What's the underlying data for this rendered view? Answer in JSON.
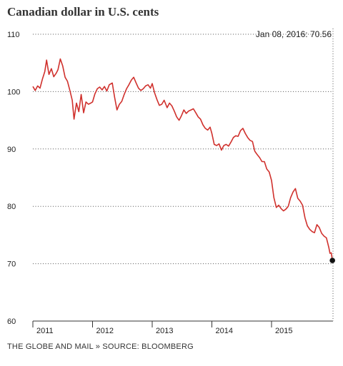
{
  "title": "Canadian dollar in U.S. cents",
  "source": "THE GLOBE AND MAIL » SOURCE: BLOOMBERG",
  "colors": {
    "line": "#d0312d",
    "grid": "#555555",
    "axis": "#333333",
    "point": "#111111"
  },
  "chart_data": {
    "type": "line",
    "title": "Canadian dollar in U.S. cents",
    "xlabel": "",
    "ylabel": "",
    "ylim": [
      60,
      110
    ],
    "y_ticks": [
      60,
      70,
      80,
      90,
      100,
      110
    ],
    "xlim": [
      2011.0,
      2016.03
    ],
    "x_ticks": [
      {
        "label": "2011",
        "x": 2011.0
      },
      {
        "label": "2012",
        "x": 2012.0
      },
      {
        "label": "2013",
        "x": 2013.0
      },
      {
        "label": "2014",
        "x": 2014.0
      },
      {
        "label": "2015",
        "x": 2015.0
      }
    ],
    "grid": "horizontal dotted",
    "annotation": {
      "text": "Jan 08, 2016: 70.56",
      "x": 2016.02,
      "y": 70.56
    },
    "series": [
      {
        "values": [
          [
            2011.0,
            100.9
          ],
          [
            2011.04,
            100.2
          ],
          [
            2011.08,
            101.0
          ],
          [
            2011.12,
            100.6
          ],
          [
            2011.16,
            102.2
          ],
          [
            2011.2,
            103.5
          ],
          [
            2011.23,
            105.5
          ],
          [
            2011.27,
            103.0
          ],
          [
            2011.31,
            104.0
          ],
          [
            2011.35,
            102.6
          ],
          [
            2011.39,
            103.2
          ],
          [
            2011.42,
            103.8
          ],
          [
            2011.46,
            105.7
          ],
          [
            2011.5,
            104.5
          ],
          [
            2011.54,
            102.5
          ],
          [
            2011.58,
            101.8
          ],
          [
            2011.62,
            100.2
          ],
          [
            2011.66,
            98.5
          ],
          [
            2011.69,
            95.2
          ],
          [
            2011.73,
            98.0
          ],
          [
            2011.77,
            96.5
          ],
          [
            2011.81,
            99.5
          ],
          [
            2011.85,
            96.3
          ],
          [
            2011.89,
            98.2
          ],
          [
            2011.93,
            97.8
          ],
          [
            2011.97,
            98.0
          ],
          [
            2012.0,
            98.2
          ],
          [
            2012.04,
            99.6
          ],
          [
            2012.08,
            100.5
          ],
          [
            2012.12,
            100.8
          ],
          [
            2012.16,
            100.3
          ],
          [
            2012.2,
            100.9
          ],
          [
            2012.24,
            100.1
          ],
          [
            2012.28,
            101.2
          ],
          [
            2012.33,
            101.5
          ],
          [
            2012.37,
            99.0
          ],
          [
            2012.41,
            96.8
          ],
          [
            2012.45,
            97.8
          ],
          [
            2012.49,
            98.3
          ],
          [
            2012.53,
            99.5
          ],
          [
            2012.57,
            100.5
          ],
          [
            2012.61,
            101.2
          ],
          [
            2012.65,
            102.0
          ],
          [
            2012.69,
            102.5
          ],
          [
            2012.73,
            101.5
          ],
          [
            2012.77,
            100.6
          ],
          [
            2012.81,
            100.2
          ],
          [
            2012.85,
            100.5
          ],
          [
            2012.89,
            101.0
          ],
          [
            2012.93,
            101.2
          ],
          [
            2012.97,
            100.6
          ],
          [
            2013.0,
            101.4
          ],
          [
            2013.04,
            99.8
          ],
          [
            2013.08,
            98.6
          ],
          [
            2013.12,
            97.6
          ],
          [
            2013.16,
            97.8
          ],
          [
            2013.2,
            98.5
          ],
          [
            2013.25,
            97.2
          ],
          [
            2013.29,
            98.0
          ],
          [
            2013.33,
            97.5
          ],
          [
            2013.37,
            96.6
          ],
          [
            2013.41,
            95.6
          ],
          [
            2013.45,
            95.0
          ],
          [
            2013.49,
            95.8
          ],
          [
            2013.53,
            96.8
          ],
          [
            2013.57,
            96.2
          ],
          [
            2013.61,
            96.6
          ],
          [
            2013.65,
            96.8
          ],
          [
            2013.69,
            97.0
          ],
          [
            2013.73,
            96.3
          ],
          [
            2013.77,
            95.6
          ],
          [
            2013.81,
            95.2
          ],
          [
            2013.85,
            94.2
          ],
          [
            2013.89,
            93.6
          ],
          [
            2013.93,
            93.3
          ],
          [
            2013.97,
            93.8
          ],
          [
            2014.0,
            92.7
          ],
          [
            2014.04,
            90.8
          ],
          [
            2014.08,
            90.6
          ],
          [
            2014.12,
            90.9
          ],
          [
            2014.16,
            89.8
          ],
          [
            2014.2,
            90.6
          ],
          [
            2014.24,
            90.8
          ],
          [
            2014.28,
            90.5
          ],
          [
            2014.32,
            91.2
          ],
          [
            2014.36,
            92.0
          ],
          [
            2014.4,
            92.3
          ],
          [
            2014.44,
            92.2
          ],
          [
            2014.48,
            93.2
          ],
          [
            2014.52,
            93.6
          ],
          [
            2014.56,
            92.7
          ],
          [
            2014.6,
            92.0
          ],
          [
            2014.64,
            91.5
          ],
          [
            2014.68,
            91.3
          ],
          [
            2014.72,
            89.6
          ],
          [
            2014.76,
            89.0
          ],
          [
            2014.8,
            88.5
          ],
          [
            2014.84,
            87.8
          ],
          [
            2014.88,
            87.8
          ],
          [
            2014.92,
            86.5
          ],
          [
            2014.96,
            86.0
          ],
          [
            2015.0,
            84.5
          ],
          [
            2015.04,
            81.5
          ],
          [
            2015.08,
            79.8
          ],
          [
            2015.12,
            80.2
          ],
          [
            2015.16,
            79.6
          ],
          [
            2015.2,
            79.2
          ],
          [
            2015.24,
            79.5
          ],
          [
            2015.28,
            80.0
          ],
          [
            2015.32,
            81.5
          ],
          [
            2015.36,
            82.5
          ],
          [
            2015.4,
            83.1
          ],
          [
            2015.44,
            81.4
          ],
          [
            2015.48,
            80.9
          ],
          [
            2015.52,
            80.2
          ],
          [
            2015.56,
            78.0
          ],
          [
            2015.6,
            76.6
          ],
          [
            2015.64,
            76.0
          ],
          [
            2015.68,
            75.6
          ],
          [
            2015.72,
            75.4
          ],
          [
            2015.76,
            76.8
          ],
          [
            2015.8,
            76.3
          ],
          [
            2015.84,
            75.3
          ],
          [
            2015.88,
            74.8
          ],
          [
            2015.92,
            74.5
          ],
          [
            2015.96,
            72.8
          ],
          [
            2015.98,
            71.8
          ],
          [
            2016.0,
            71.9
          ],
          [
            2016.02,
            70.56
          ]
        ]
      }
    ]
  }
}
